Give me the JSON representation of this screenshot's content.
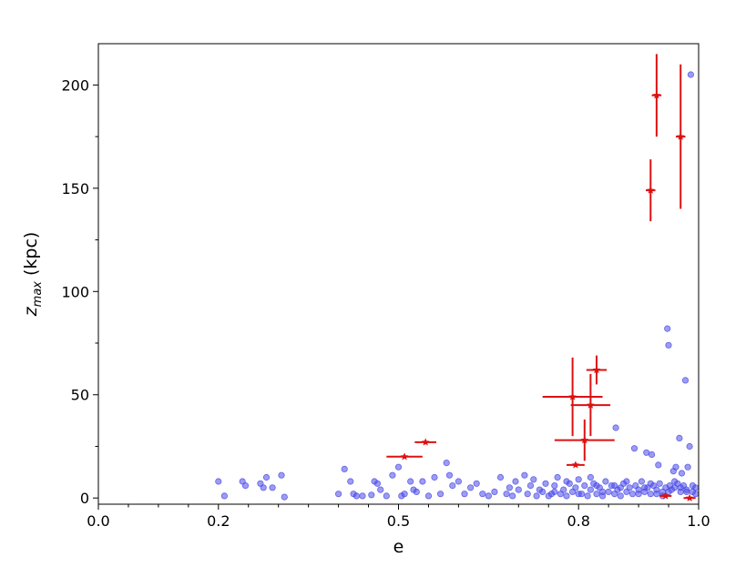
{
  "chart_data": {
    "type": "scatter",
    "title": "",
    "xlabel": "e",
    "ylabel_main": "z",
    "ylabel_sub": "max",
    "ylabel_unit": "(kpc)",
    "xlim": [
      0.0,
      1.0
    ],
    "ylim": [
      -3,
      220
    ],
    "x_ticks": [
      0.0,
      0.2,
      0.5,
      0.8,
      1.0
    ],
    "x_tick_labels": [
      "0.0",
      "0.2",
      "0.5",
      "0.8",
      "1.0"
    ],
    "x_minor_ticks": [
      0.05,
      0.1,
      0.15,
      0.25,
      0.3,
      0.35,
      0.4,
      0.45,
      0.55,
      0.6,
      0.65,
      0.7,
      0.75,
      0.85,
      0.9,
      0.95
    ],
    "y_ticks": [
      0,
      50,
      100,
      150,
      200
    ],
    "y_tick_labels": [
      "0",
      "50",
      "100",
      "150",
      "200"
    ],
    "y_minor_ticks": [
      25,
      75,
      125,
      175
    ],
    "grid": false,
    "series": [
      {
        "marker": "circle",
        "color": "#4a4ae8",
        "points": [
          [
            0.2,
            8
          ],
          [
            0.21,
            1
          ],
          [
            0.24,
            8
          ],
          [
            0.245,
            6
          ],
          [
            0.27,
            7
          ],
          [
            0.275,
            5
          ],
          [
            0.28,
            10
          ],
          [
            0.29,
            5
          ],
          [
            0.305,
            11
          ],
          [
            0.31,
            0.5
          ],
          [
            0.4,
            2
          ],
          [
            0.41,
            14
          ],
          [
            0.42,
            8
          ],
          [
            0.425,
            2
          ],
          [
            0.43,
            1
          ],
          [
            0.44,
            1
          ],
          [
            0.455,
            1.5
          ],
          [
            0.46,
            8
          ],
          [
            0.465,
            7
          ],
          [
            0.47,
            4
          ],
          [
            0.48,
            1
          ],
          [
            0.49,
            11
          ],
          [
            0.5,
            15
          ],
          [
            0.505,
            1
          ],
          [
            0.51,
            2
          ],
          [
            0.52,
            8
          ],
          [
            0.525,
            4
          ],
          [
            0.53,
            3
          ],
          [
            0.54,
            8
          ],
          [
            0.55,
            1
          ],
          [
            0.56,
            10
          ],
          [
            0.57,
            2
          ],
          [
            0.58,
            17
          ],
          [
            0.585,
            11
          ],
          [
            0.59,
            6
          ],
          [
            0.6,
            8
          ],
          [
            0.61,
            2
          ],
          [
            0.62,
            5
          ],
          [
            0.63,
            7
          ],
          [
            0.64,
            2
          ],
          [
            0.65,
            1
          ],
          [
            0.66,
            3
          ],
          [
            0.67,
            10
          ],
          [
            0.68,
            2
          ],
          [
            0.685,
            5
          ],
          [
            0.69,
            1
          ],
          [
            0.695,
            8
          ],
          [
            0.7,
            4
          ],
          [
            0.71,
            11
          ],
          [
            0.715,
            2
          ],
          [
            0.72,
            6
          ],
          [
            0.725,
            9
          ],
          [
            0.73,
            1
          ],
          [
            0.735,
            4
          ],
          [
            0.74,
            3
          ],
          [
            0.745,
            7
          ],
          [
            0.75,
            1
          ],
          [
            0.755,
            2
          ],
          [
            0.76,
            6
          ],
          [
            0.765,
            10
          ],
          [
            0.77,
            2
          ],
          [
            0.775,
            4
          ],
          [
            0.78,
            1
          ],
          [
            0.785,
            7
          ],
          [
            0.79,
            3
          ],
          [
            0.795,
            5
          ],
          [
            0.8,
            9
          ],
          [
            0.805,
            2
          ],
          [
            0.81,
            6
          ],
          [
            0.815,
            1
          ],
          [
            0.82,
            4
          ],
          [
            0.825,
            7
          ],
          [
            0.83,
            2
          ],
          [
            0.835,
            5
          ],
          [
            0.84,
            1
          ],
          [
            0.845,
            8
          ],
          [
            0.85,
            3
          ],
          [
            0.855,
            6
          ],
          [
            0.86,
            2
          ],
          [
            0.862,
            34
          ],
          [
            0.865,
            4
          ],
          [
            0.87,
            1
          ],
          [
            0.875,
            7
          ],
          [
            0.88,
            3
          ],
          [
            0.885,
            5
          ],
          [
            0.89,
            2
          ],
          [
            0.893,
            24
          ],
          [
            0.895,
            6
          ],
          [
            0.9,
            4
          ],
          [
            0.905,
            8
          ],
          [
            0.91,
            3
          ],
          [
            0.913,
            22
          ],
          [
            0.915,
            5
          ],
          [
            0.92,
            2
          ],
          [
            0.922,
            21
          ],
          [
            0.925,
            6
          ],
          [
            0.93,
            4
          ],
          [
            0.933,
            16
          ],
          [
            0.935,
            7
          ],
          [
            0.94,
            3
          ],
          [
            0.945,
            5
          ],
          [
            0.948,
            82
          ],
          [
            0.95,
            74
          ],
          [
            0.952,
            6
          ],
          [
            0.955,
            4
          ],
          [
            0.958,
            13
          ],
          [
            0.96,
            5
          ],
          [
            0.962,
            15
          ],
          [
            0.965,
            7
          ],
          [
            0.968,
            29
          ],
          [
            0.97,
            3
          ],
          [
            0.972,
            12
          ],
          [
            0.975,
            6
          ],
          [
            0.978,
            57
          ],
          [
            0.98,
            4
          ],
          [
            0.982,
            15
          ],
          [
            0.985,
            25
          ],
          [
            0.987,
            205
          ],
          [
            0.99,
            6
          ],
          [
            0.995,
            5
          ],
          [
            0.76,
            3
          ],
          [
            0.78,
            8
          ],
          [
            0.8,
            2
          ],
          [
            0.82,
            10
          ],
          [
            0.84,
            3
          ],
          [
            0.86,
            6
          ],
          [
            0.88,
            8
          ],
          [
            0.9,
            2
          ],
          [
            0.92,
            7
          ],
          [
            0.94,
            1
          ],
          [
            0.96,
            8
          ],
          [
            0.98,
            3
          ],
          [
            0.995,
            2
          ],
          [
            0.83,
            6
          ],
          [
            0.87,
            5
          ],
          [
            0.91,
            5
          ],
          [
            0.93,
            2
          ],
          [
            0.95,
            3
          ],
          [
            0.97,
            5
          ],
          [
            0.99,
            3
          ]
        ]
      },
      {
        "marker": "star-errorbar",
        "color": "#dd1111",
        "points": [
          {
            "x": 0.51,
            "y": 20,
            "xerr": 0.03,
            "yerr": 0
          },
          {
            "x": 0.545,
            "y": 27,
            "xerr": 0.018,
            "yerr": 0
          },
          {
            "x": 0.79,
            "y": 49,
            "xerr": 0.05,
            "yerr": 19
          },
          {
            "x": 0.795,
            "y": 16,
            "xerr": 0.015,
            "yerr": 0
          },
          {
            "x": 0.81,
            "y": 28,
            "xerr": 0.05,
            "yerr": 10
          },
          {
            "x": 0.82,
            "y": 45,
            "xerr": 0.033,
            "yerr": 15
          },
          {
            "x": 0.83,
            "y": 62,
            "xerr": 0.017,
            "yerr": 7
          },
          {
            "x": 0.92,
            "y": 149,
            "xerr": 0.008,
            "yerr": 15
          },
          {
            "x": 0.93,
            "y": 195,
            "xerr": 0.008,
            "yerr": 20
          },
          {
            "x": 0.945,
            "y": 1,
            "xerr": 0.01,
            "yerr": 0
          },
          {
            "x": 0.97,
            "y": 175,
            "xerr": 0.008,
            "yerr": 35
          },
          {
            "x": 0.985,
            "y": 0,
            "xerr": 0.01,
            "yerr": 0
          }
        ]
      }
    ]
  }
}
